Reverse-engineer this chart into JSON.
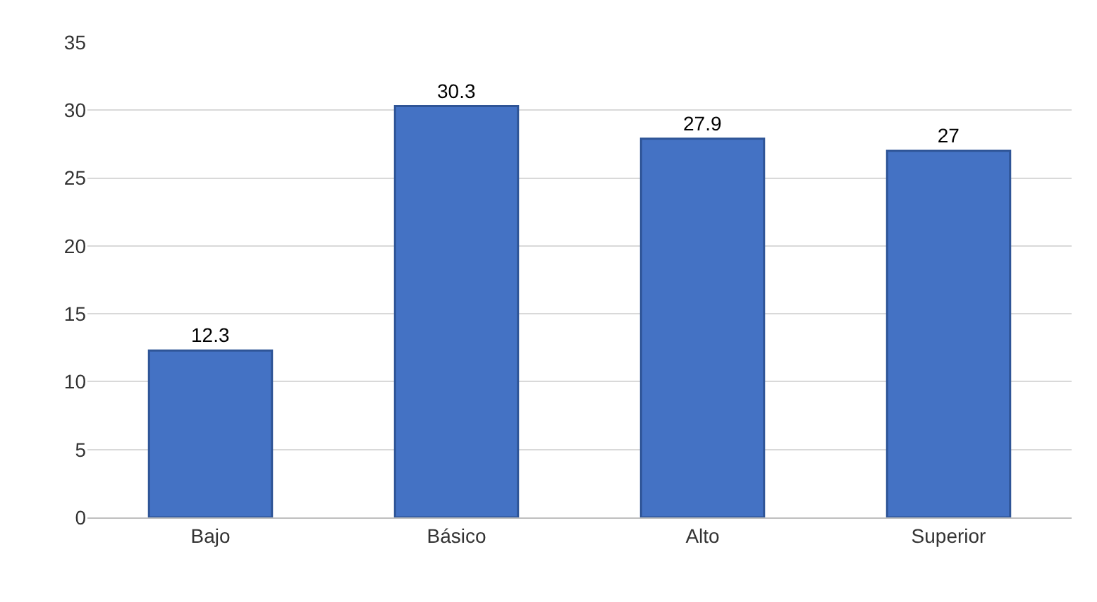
{
  "chart_data": {
    "type": "bar",
    "categories": [
      "Bajo",
      "Básico",
      "Alto",
      "Superior"
    ],
    "values": [
      12.3,
      30.3,
      27.9,
      27
    ],
    "color": "#4472c4",
    "ylim": [
      0,
      35
    ],
    "yticks": [
      0,
      5,
      10,
      15,
      20,
      25,
      30,
      35
    ],
    "grid": "y",
    "data_labels": true
  }
}
